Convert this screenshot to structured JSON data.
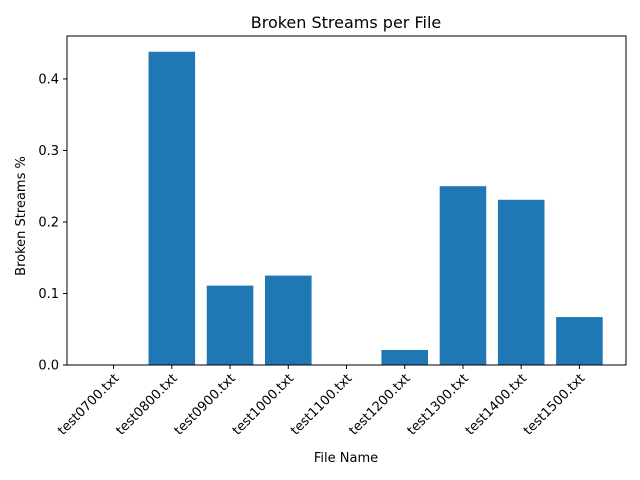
{
  "chart_data": {
    "type": "bar",
    "title": "Broken Streams per File",
    "xlabel": "File Name",
    "ylabel": "Broken Streams %",
    "categories": [
      "test0700.txt",
      "test0800.txt",
      "test0900.txt",
      "test1000.txt",
      "test1100.txt",
      "test1200.txt",
      "test1300.txt",
      "test1400.txt",
      "test1500.txt"
    ],
    "values": [
      0.0,
      0.438,
      0.111,
      0.125,
      0.0,
      0.021,
      0.25,
      0.231,
      0.067
    ],
    "ylim": [
      0,
      0.46
    ],
    "yticks": [
      0.0,
      0.1,
      0.2,
      0.3,
      0.4
    ],
    "ytick_labels": [
      "0.0",
      "0.1",
      "0.2",
      "0.3",
      "0.4"
    ],
    "bar_color": "#1f77b4",
    "grid": false,
    "legend": false
  }
}
